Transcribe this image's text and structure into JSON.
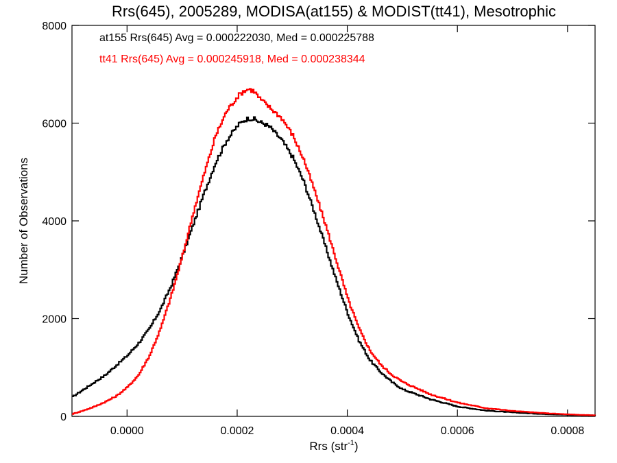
{
  "chart_data": {
    "type": "line",
    "title": "Rrs(645), 2005289, MODISA(at155) & MODIST(tt41), Mesotrophic",
    "xlabel": "Rrs (str",
    "xlabel_superscript": "-1",
    "xlabel_suffix": ")",
    "ylabel": "Number of Observations",
    "xlim": [
      -0.0001,
      0.00085
    ],
    "ylim": [
      0,
      8000
    ],
    "grid": false,
    "x_ticks": [
      {
        "value": 0.0,
        "label": "0.0000"
      },
      {
        "value": 0.0002,
        "label": "0.0002"
      },
      {
        "value": 0.0004,
        "label": "0.0004"
      },
      {
        "value": 0.0006,
        "label": "0.0006"
      },
      {
        "value": 0.0008,
        "label": "0.0008"
      }
    ],
    "y_ticks": [
      {
        "value": 0,
        "label": "0"
      },
      {
        "value": 2000,
        "label": "2000"
      },
      {
        "value": 4000,
        "label": "4000"
      },
      {
        "value": 6000,
        "label": "6000"
      },
      {
        "value": 8000,
        "label": "8000"
      }
    ],
    "annotations": [
      {
        "text": "at155 Rrs(645) Avg = 0.000222030, Med = 0.000225788",
        "color": "#000000"
      },
      {
        "text": "tt41 Rrs(645) Avg = 0.000245918, Med = 0.000238344",
        "color": "#ff0000"
      }
    ],
    "series": [
      {
        "name": "at155",
        "color": "#000000",
        "x": [
          -0.0001,
          -8e-05,
          -6e-05,
          -4e-05,
          -2e-05,
          0.0,
          2e-05,
          4e-05,
          6e-05,
          8e-05,
          0.0001,
          0.00012,
          0.00014,
          0.00016,
          0.00018,
          0.0002,
          0.00021,
          0.00022,
          0.00023,
          0.00024,
          0.00025,
          0.00026,
          0.00028,
          0.0003,
          0.00032,
          0.00034,
          0.00036,
          0.00038,
          0.0004,
          0.00042,
          0.00044,
          0.00046,
          0.00048,
          0.0005,
          0.00055,
          0.0006,
          0.00065,
          0.0007,
          0.00075,
          0.0008,
          0.00085
        ],
        "y": [
          400,
          550,
          700,
          850,
          1050,
          1250,
          1500,
          1800,
          2200,
          2700,
          3300,
          3950,
          4600,
          5200,
          5650,
          5950,
          6050,
          6100,
          6080,
          6020,
          5980,
          5900,
          5650,
          5300,
          4800,
          4150,
          3450,
          2750,
          2100,
          1550,
          1150,
          900,
          700,
          550,
          350,
          200,
          120,
          80,
          50,
          30,
          20
        ]
      },
      {
        "name": "tt41",
        "color": "#ff0000",
        "x": [
          -0.0001,
          -8e-05,
          -6e-05,
          -4e-05,
          -2e-05,
          0.0,
          2e-05,
          4e-05,
          6e-05,
          8e-05,
          0.0001,
          0.00012,
          0.00014,
          0.00016,
          0.00018,
          0.0002,
          0.00021,
          0.00022,
          0.00023,
          0.00024,
          0.00025,
          0.00026,
          0.00028,
          0.0003,
          0.00032,
          0.00034,
          0.00036,
          0.00038,
          0.0004,
          0.00042,
          0.00044,
          0.00046,
          0.00048,
          0.0005,
          0.00055,
          0.0006,
          0.00065,
          0.0007,
          0.00075,
          0.0008,
          0.00085
        ],
        "y": [
          50,
          120,
          200,
          300,
          420,
          600,
          850,
          1250,
          1800,
          2500,
          3300,
          4200,
          5000,
          5750,
          6250,
          6550,
          6650,
          6700,
          6650,
          6500,
          6400,
          6300,
          6100,
          5750,
          5250,
          4600,
          3900,
          3150,
          2400,
          1800,
          1350,
          1050,
          850,
          700,
          450,
          280,
          170,
          110,
          70,
          40,
          20
        ]
      }
    ]
  }
}
